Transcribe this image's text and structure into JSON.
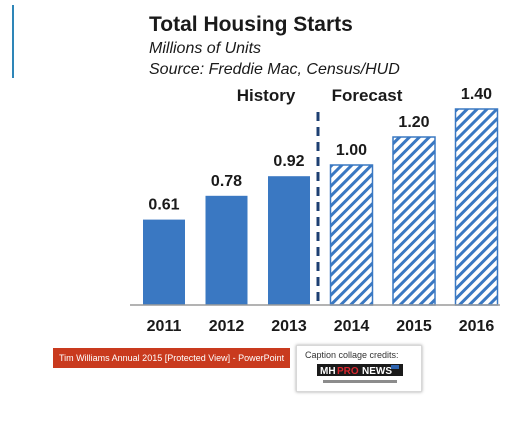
{
  "header": {
    "title": "Total Housing Starts",
    "subtitle": "Millions of Units",
    "source": "Source: Freddie Mac, Census/HUD"
  },
  "chart_data": {
    "type": "bar",
    "title": "Total Housing Starts",
    "ylabel": "Millions of Units",
    "categories": [
      "2011",
      "2012",
      "2013",
      "2014",
      "2015",
      "2016"
    ],
    "values": [
      0.61,
      0.78,
      0.92,
      1.0,
      1.2,
      1.4
    ],
    "data_labels": [
      "0.61",
      "0.78",
      "0.92",
      "1.00",
      "1.20",
      "1.40"
    ],
    "groups": [
      {
        "name": "History",
        "categories": [
          "2011",
          "2012",
          "2013"
        ],
        "fill": "solid"
      },
      {
        "name": "Forecast",
        "categories": [
          "2014",
          "2015",
          "2016"
        ],
        "fill": "diagonal-hatch"
      }
    ],
    "ylim": [
      0,
      1.5
    ],
    "grid": false,
    "divider": "dashed vertical line between 2013 and 2014",
    "colors": {
      "bar": "#3a78c2",
      "hatch": "#3a78c2",
      "divider": "#1d3f72",
      "axis": "#9a9a9a"
    }
  },
  "footer": {
    "taskbar_label": "Tim Williams Annual 2015 [Protected View]  -  PowerPoint",
    "taskbar_color": "#c93a1e",
    "credits_label": "Caption collage credits:",
    "logo_text": "MHPRONEWS",
    "logo_tagline": "Industry News, Tips and Views Pros can Use"
  }
}
